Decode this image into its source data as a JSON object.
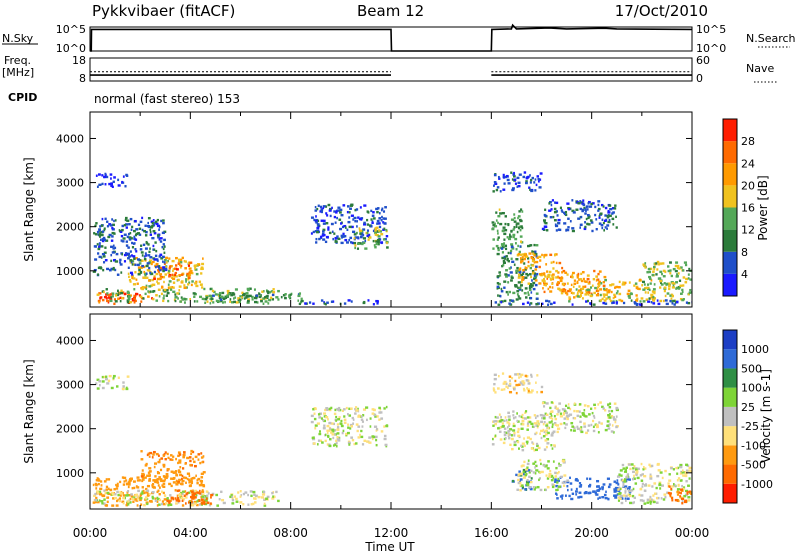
{
  "header": {
    "station": "Pykkvibaer (fitACF)",
    "beam": "Beam 12",
    "date": "17/Oct/2010",
    "cpid_mode": "normal (fast stereo) 153"
  },
  "side_labels": {
    "nsky": "N.Sky",
    "nsearch": "N.Search",
    "freq_line1": "Freq.",
    "freq_line2": "[MHz]",
    "nave": "Nave",
    "cpid": "CPID"
  },
  "colors": {
    "power_scale": [
      "#1a1aff",
      "#1f4fc9",
      "#2b7b3a",
      "#54a858",
      "#f0c21f",
      "#ff9a00",
      "#ff6a00",
      "#ff1d00"
    ],
    "velocity_scale": [
      "#1c3ec4",
      "#2e6ad7",
      "#2f8f45",
      "#7ed437",
      "#c0c0c0",
      "#ffe07a",
      "#ff9a10",
      "#ff6a00",
      "#ff1d00"
    ],
    "no_data": "#ffffff",
    "ground_scatter": "#c0c0c0"
  },
  "chart_data": [
    {
      "type": "line",
      "name": "nsky_nsearch",
      "title": "",
      "ylabel_left": "N.Sky",
      "ylabel_right": "N.Search",
      "yticks_left": [
        "10^5",
        "10^0"
      ],
      "yticks_right": [
        "10^5",
        "10^0"
      ],
      "x": [
        0,
        0.05,
        0.06,
        12.0,
        12.02,
        16.0,
        16.02,
        16.8,
        16.85,
        17.0,
        18.3,
        19.0,
        20.5,
        21.0,
        24.0
      ],
      "y": [
        0.0,
        0.0,
        4.5,
        4.5,
        0.0,
        0.0,
        4.5,
        4.6,
        5.4,
        4.6,
        4.8,
        4.6,
        4.75,
        4.6,
        4.5
      ],
      "xlim": [
        0,
        24
      ],
      "ylim": [
        0,
        5
      ],
      "gaps": [
        [
          12,
          16
        ]
      ]
    },
    {
      "type": "line",
      "name": "freq_nave",
      "title": "",
      "ylabel_left": "Freq. [MHz]",
      "ylabel_right": "Nave",
      "yticks_left": [
        "18",
        "8"
      ],
      "yticks_right": [
        "60",
        "0"
      ],
      "x": [
        0,
        12,
        16,
        24
      ],
      "freq": [
        10.6,
        10.6,
        10.6,
        10.6
      ],
      "nave": [
        24,
        24,
        24,
        24
      ],
      "xlim": [
        0,
        24
      ],
      "ylim_left": [
        8,
        18
      ],
      "ylim_right": [
        0,
        60
      ],
      "gaps": [
        [
          12,
          16
        ]
      ]
    },
    {
      "type": "heatmap",
      "name": "power",
      "title": "",
      "xlabel": "",
      "ylabel": "Slant Range [km]",
      "xlim": [
        0,
        24
      ],
      "ylim": [
        180,
        4600
      ],
      "yticks": [
        1000,
        2000,
        3000,
        4000
      ],
      "colorbar_label": "Power [dB]",
      "colorbar_ticks": [
        4,
        8,
        12,
        16,
        20,
        24,
        28
      ],
      "clim": [
        0,
        32
      ],
      "gaps": [
        [
          12,
          16
        ]
      ],
      "blobs": [
        {
          "t0": 0.1,
          "t1": 2.5,
          "r0": 250,
          "r1": 520,
          "p": 27
        },
        {
          "t0": 1.5,
          "t1": 4.5,
          "r0": 600,
          "r1": 1300,
          "p": 18
        },
        {
          "t0": 2.5,
          "t1": 4.0,
          "r0": 800,
          "r1": 1200,
          "p": 25
        },
        {
          "t0": 0.2,
          "t1": 7.5,
          "r0": 280,
          "r1": 600,
          "p": 14
        },
        {
          "t0": 0.1,
          "t1": 3.0,
          "r0": 900,
          "r1": 2200,
          "p": 7
        },
        {
          "t0": 4.5,
          "t1": 8.5,
          "r0": 250,
          "r1": 500,
          "p": 11
        },
        {
          "t0": 0.2,
          "t1": 1.5,
          "r0": 2900,
          "r1": 3200,
          "p": 4
        },
        {
          "t0": 8.8,
          "t1": 11.8,
          "r0": 1600,
          "r1": 2500,
          "p": 6
        },
        {
          "t0": 10.5,
          "t1": 11.9,
          "r0": 1500,
          "r1": 2000,
          "p": 14
        },
        {
          "t0": 8.5,
          "t1": 12.0,
          "r0": 240,
          "r1": 330,
          "p": 5
        },
        {
          "t0": 16.0,
          "t1": 17.2,
          "r0": 1500,
          "r1": 2400,
          "p": 13
        },
        {
          "t0": 16.0,
          "t1": 18.0,
          "r0": 2800,
          "r1": 3250,
          "p": 5
        },
        {
          "t0": 18.0,
          "t1": 21.0,
          "r0": 1900,
          "r1": 2600,
          "p": 7
        },
        {
          "t0": 16.2,
          "t1": 17.8,
          "r0": 300,
          "r1": 1600,
          "p": 10
        },
        {
          "t0": 17.0,
          "t1": 18.8,
          "r0": 700,
          "r1": 1400,
          "p": 21
        },
        {
          "t0": 18.0,
          "t1": 20.5,
          "r0": 450,
          "r1": 1000,
          "p": 22
        },
        {
          "t0": 19.0,
          "t1": 22.5,
          "r0": 300,
          "r1": 800,
          "p": 18
        },
        {
          "t0": 22.0,
          "t1": 24.0,
          "r0": 300,
          "r1": 1200,
          "p": 15
        },
        {
          "t0": 16.0,
          "t1": 24.0,
          "r0": 230,
          "r1": 330,
          "p": 5
        }
      ]
    },
    {
      "type": "heatmap",
      "name": "velocity",
      "title": "",
      "xlabel": "Time UT",
      "ylabel": "Slant Range [km]",
      "xlim": [
        0,
        24
      ],
      "ylim": [
        180,
        4600
      ],
      "yticks": [
        1000,
        2000,
        3000,
        4000
      ],
      "xticks": [
        "00:00",
        "04:00",
        "08:00",
        "12:00",
        "16:00",
        "20:00",
        "00:00"
      ],
      "colorbar_label": "Velocity [m s-1]",
      "colorbar_ticks": [
        1000,
        500,
        100,
        25,
        -25,
        -100,
        -500,
        -1000
      ],
      "gaps": [
        [
          12,
          16
        ]
      ],
      "blobs": [
        {
          "t0": 0.1,
          "t1": 4.5,
          "r0": 250,
          "r1": 900,
          "v": -180
        },
        {
          "t0": 2.0,
          "t1": 4.5,
          "r0": 800,
          "r1": 1500,
          "v": -250
        },
        {
          "t0": 0.1,
          "t1": 7.5,
          "r0": 250,
          "r1": 600,
          "v": 0
        },
        {
          "t0": 3.0,
          "t1": 5.0,
          "r0": 300,
          "r1": 600,
          "v": -400
        },
        {
          "t0": 8.8,
          "t1": 11.8,
          "r0": 1600,
          "r1": 2500,
          "v": 0
        },
        {
          "t0": 0.2,
          "t1": 1.5,
          "r0": 2900,
          "r1": 3200,
          "v": 0
        },
        {
          "t0": 16.0,
          "t1": 18.5,
          "r0": 1500,
          "r1": 2400,
          "v": 0
        },
        {
          "t0": 16.0,
          "t1": 18.0,
          "r0": 2800,
          "r1": 3250,
          "v": -60
        },
        {
          "t0": 18.0,
          "t1": 21.0,
          "r0": 1900,
          "r1": 2600,
          "v": 0
        },
        {
          "t0": 16.8,
          "t1": 17.6,
          "r0": 600,
          "r1": 1100,
          "v": 300
        },
        {
          "t0": 18.5,
          "t1": 21.5,
          "r0": 400,
          "r1": 900,
          "v": 400
        },
        {
          "t0": 17.0,
          "t1": 19.0,
          "r0": 600,
          "r1": 1300,
          "v": 0
        },
        {
          "t0": 21.0,
          "t1": 24.0,
          "r0": 300,
          "r1": 1200,
          "v": 0
        },
        {
          "t0": 23.0,
          "t1": 24.0,
          "r0": 300,
          "r1": 700,
          "v": -300
        }
      ]
    }
  ]
}
